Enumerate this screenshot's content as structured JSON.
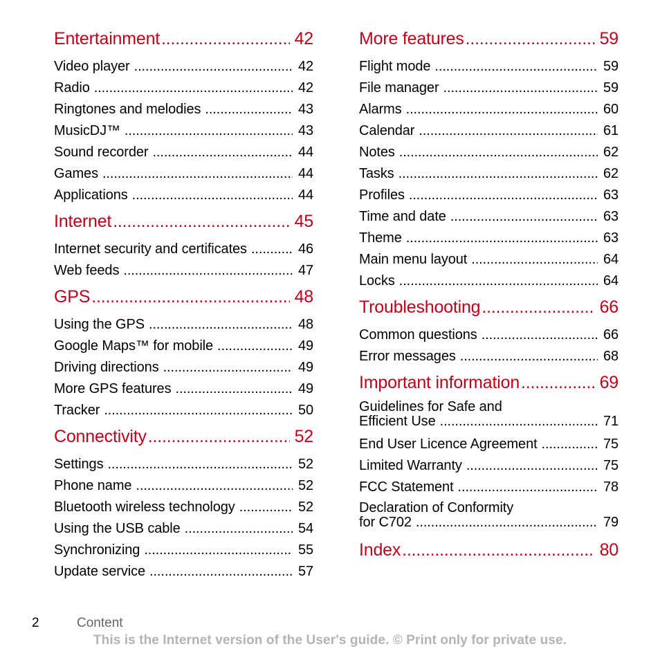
{
  "left_sections": [
    {
      "title": "Entertainment",
      "page": "42",
      "entries": [
        {
          "label": "Video player",
          "page": "42"
        },
        {
          "label": "Radio",
          "page": "42"
        },
        {
          "label": "Ringtones and melodies",
          "page": "43"
        },
        {
          "label": "MusicDJ™",
          "page": "43"
        },
        {
          "label": "Sound recorder",
          "page": "44"
        },
        {
          "label": "Games",
          "page": "44"
        },
        {
          "label": "Applications",
          "page": "44"
        }
      ]
    },
    {
      "title": "Internet",
      "page": "45",
      "entries": [
        {
          "label": "Internet security and certificates",
          "page": "46"
        },
        {
          "label": "Web feeds",
          "page": "47"
        }
      ]
    },
    {
      "title": "GPS",
      "page": "48",
      "entries": [
        {
          "label": "Using the GPS",
          "page": "48"
        },
        {
          "label": "Google Maps™ for mobile",
          "page": "49"
        },
        {
          "label": "Driving directions",
          "page": "49"
        },
        {
          "label": "More GPS features",
          "page": "49"
        },
        {
          "label": "Tracker",
          "page": "50"
        }
      ]
    },
    {
      "title": "Connectivity",
      "page": "52",
      "entries": [
        {
          "label": "Settings",
          "page": "52"
        },
        {
          "label": "Phone name",
          "page": "52"
        },
        {
          "label": "Bluetooth wireless technology",
          "page": "52"
        },
        {
          "label": "Using the USB cable",
          "page": "54"
        },
        {
          "label": "Synchronizing",
          "page": "55"
        },
        {
          "label": "Update service",
          "page": "57"
        }
      ]
    }
  ],
  "right_sections": [
    {
      "title": "More features",
      "page": "59",
      "entries": [
        {
          "label": "Flight mode",
          "page": "59"
        },
        {
          "label": "File manager",
          "page": "59"
        },
        {
          "label": "Alarms",
          "page": "60"
        },
        {
          "label": "Calendar",
          "page": "61"
        },
        {
          "label": "Notes",
          "page": "62"
        },
        {
          "label": "Tasks",
          "page": "62"
        },
        {
          "label": "Profiles",
          "page": "63"
        },
        {
          "label": "Time and date",
          "page": "63"
        },
        {
          "label": "Theme",
          "page": "63"
        },
        {
          "label": "Main menu layout",
          "page": "64"
        },
        {
          "label": "Locks",
          "page": "64"
        }
      ]
    },
    {
      "title": "Troubleshooting",
      "page": "66",
      "entries": [
        {
          "label": "Common questions",
          "page": "66"
        },
        {
          "label": "Error messages",
          "page": "68"
        }
      ]
    },
    {
      "title": "Important information",
      "page": "69",
      "entries": [
        {
          "label": "Guidelines for Safe and",
          "label2": "Efficient Use",
          "page": "71"
        },
        {
          "label": "End User Licence Agreement",
          "page": "75"
        },
        {
          "label": "Limited Warranty",
          "page": "75"
        },
        {
          "label": "FCC Statement",
          "page": "78"
        },
        {
          "label": "Declaration of Conformity",
          "label2": "for C702",
          "page": "79"
        }
      ]
    },
    {
      "title": "Index",
      "page": "80",
      "entries": []
    }
  ],
  "footer": {
    "page_number": "2",
    "section": "Content",
    "notice": "This is the Internet version of the User's guide. © Print only for private use."
  }
}
